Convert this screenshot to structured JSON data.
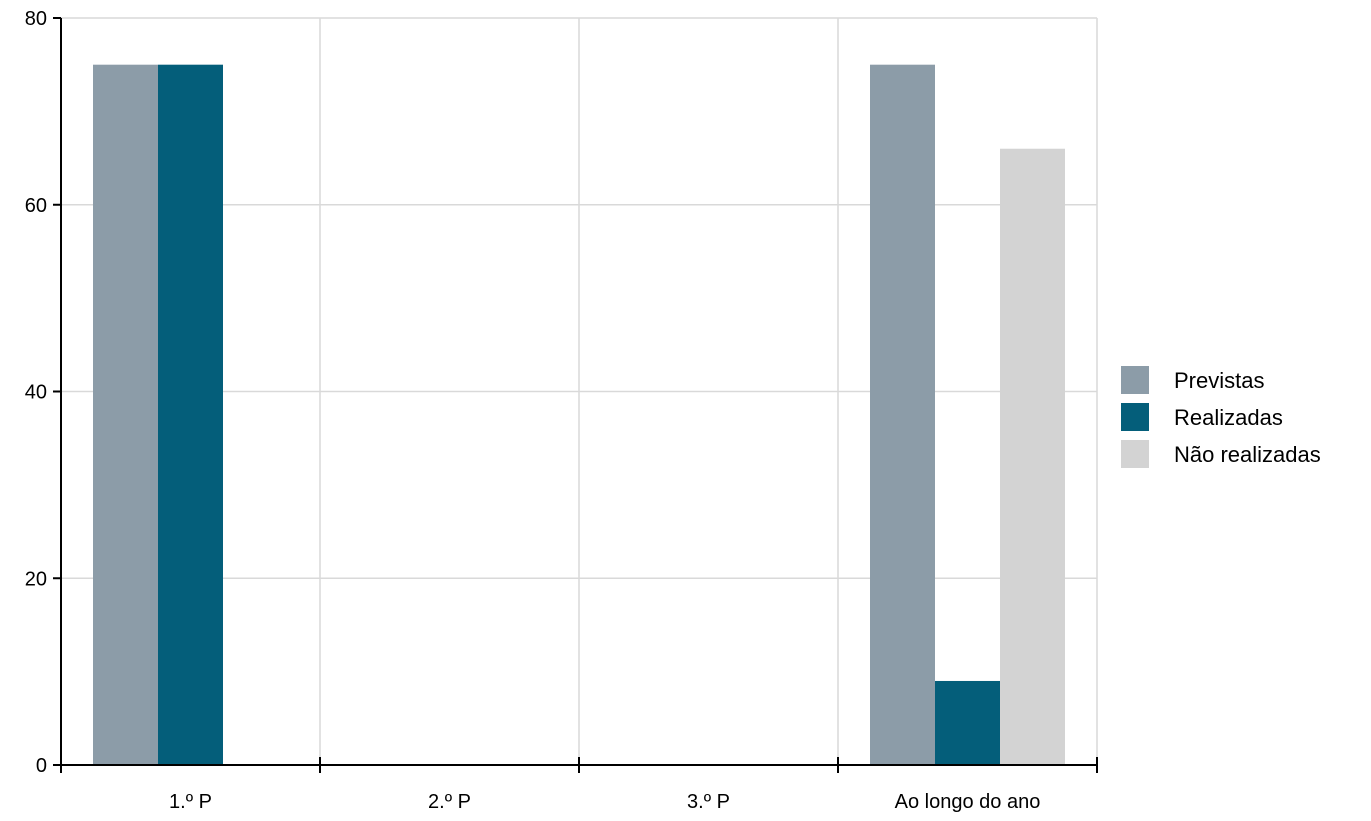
{
  "chart_data": {
    "type": "bar",
    "title": "",
    "xlabel": "",
    "ylabel": "",
    "categories": [
      "1.º P",
      "2.º P",
      "3.º P",
      "Ao longo do ano"
    ],
    "series": [
      {
        "name": "Previstas",
        "color": "#8c9ca8",
        "values": [
          75,
          0,
          0,
          75
        ]
      },
      {
        "name": "Realizadas",
        "color": "#045e7a",
        "values": [
          75,
          0,
          0,
          9
        ]
      },
      {
        "name": "Não realizadas",
        "color": "#d3d3d3",
        "values": [
          0,
          0,
          0,
          66
        ]
      }
    ],
    "ylim": [
      0,
      80
    ],
    "yticks": [
      0,
      20,
      40,
      60,
      80
    ],
    "grid": true,
    "legend_position": "right"
  }
}
